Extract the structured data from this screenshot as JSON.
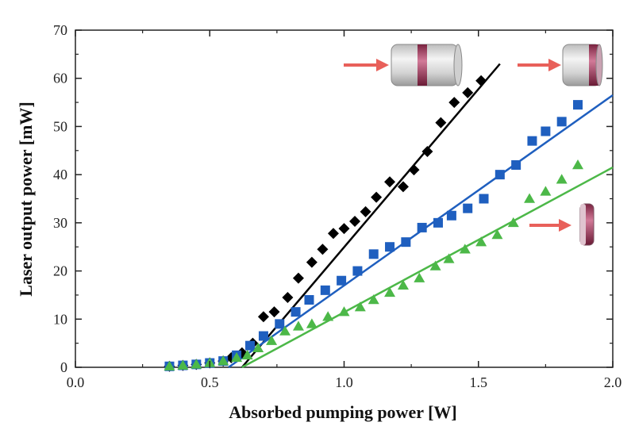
{
  "chart_data": {
    "type": "scatter",
    "title": "",
    "xlabel": "Absorbed pumping power [W]",
    "ylabel": "Laser output power [mW]",
    "xlim": [
      0.0,
      2.0
    ],
    "ylim": [
      0,
      70
    ],
    "xticks": [
      "0.0",
      "0.5",
      "1.0",
      "1.5",
      "2.0"
    ],
    "yticks": [
      "0",
      "10",
      "20",
      "30",
      "40",
      "50",
      "60",
      "70"
    ],
    "grid": false,
    "series": [
      {
        "marker": "diamond",
        "color": "#000000",
        "points": [
          [
            0.35,
            0.2
          ],
          [
            0.4,
            0.4
          ],
          [
            0.45,
            0.6
          ],
          [
            0.5,
            0.9
          ],
          [
            0.55,
            1.3
          ],
          [
            0.58,
            2.0
          ],
          [
            0.62,
            3.0
          ],
          [
            0.66,
            5.0
          ],
          [
            0.7,
            10.5
          ],
          [
            0.74,
            11.5
          ],
          [
            0.79,
            14.5
          ],
          [
            0.83,
            18.5
          ],
          [
            0.88,
            21.8
          ],
          [
            0.92,
            24.5
          ],
          [
            0.96,
            27.8
          ],
          [
            1.0,
            28.8
          ],
          [
            1.04,
            30.3
          ],
          [
            1.08,
            32.3
          ],
          [
            1.12,
            35.3
          ],
          [
            1.17,
            38.5
          ],
          [
            1.22,
            37.5
          ],
          [
            1.26,
            41.0
          ],
          [
            1.31,
            44.8
          ],
          [
            1.36,
            50.8
          ],
          [
            1.41,
            55.0
          ],
          [
            1.46,
            57.0
          ],
          [
            1.51,
            59.5
          ]
        ],
        "fit": [
          [
            0.62,
            0.0
          ],
          [
            1.58,
            63.0
          ]
        ]
      },
      {
        "marker": "square",
        "color": "#1f5fbf",
        "points": [
          [
            0.35,
            0.2
          ],
          [
            0.4,
            0.4
          ],
          [
            0.45,
            0.6
          ],
          [
            0.5,
            0.9
          ],
          [
            0.55,
            1.3
          ],
          [
            0.6,
            2.5
          ],
          [
            0.65,
            4.5
          ],
          [
            0.7,
            6.5
          ],
          [
            0.76,
            9.0
          ],
          [
            0.82,
            11.5
          ],
          [
            0.87,
            14.0
          ],
          [
            0.93,
            16.0
          ],
          [
            0.99,
            18.0
          ],
          [
            1.05,
            20.0
          ],
          [
            1.11,
            23.5
          ],
          [
            1.17,
            25.0
          ],
          [
            1.23,
            26.0
          ],
          [
            1.29,
            29.0
          ],
          [
            1.35,
            30.0
          ],
          [
            1.4,
            31.5
          ],
          [
            1.46,
            33.0
          ],
          [
            1.52,
            35.0
          ],
          [
            1.58,
            40.0
          ],
          [
            1.64,
            42.0
          ],
          [
            1.7,
            47.0
          ],
          [
            1.75,
            49.0
          ],
          [
            1.81,
            51.0
          ],
          [
            1.87,
            54.5
          ]
        ],
        "fit": [
          [
            0.57,
            0.0
          ],
          [
            2.0,
            56.5
          ]
        ]
      },
      {
        "marker": "triangle",
        "color": "#4cb848",
        "points": [
          [
            0.35,
            0.2
          ],
          [
            0.4,
            0.4
          ],
          [
            0.45,
            0.6
          ],
          [
            0.5,
            0.9
          ],
          [
            0.55,
            1.3
          ],
          [
            0.6,
            2.0
          ],
          [
            0.64,
            2.5
          ],
          [
            0.68,
            4.0
          ],
          [
            0.73,
            5.5
          ],
          [
            0.78,
            7.5
          ],
          [
            0.83,
            8.5
          ],
          [
            0.88,
            9.0
          ],
          [
            0.94,
            10.5
          ],
          [
            1.0,
            11.5
          ],
          [
            1.06,
            12.5
          ],
          [
            1.11,
            14.0
          ],
          [
            1.17,
            15.5
          ],
          [
            1.22,
            17.0
          ],
          [
            1.28,
            18.5
          ],
          [
            1.34,
            21.0
          ],
          [
            1.39,
            22.5
          ],
          [
            1.45,
            24.5
          ],
          [
            1.51,
            26.0
          ],
          [
            1.57,
            27.5
          ],
          [
            1.63,
            30.0
          ],
          [
            1.69,
            35.0
          ],
          [
            1.75,
            36.5
          ],
          [
            1.81,
            39.0
          ],
          [
            1.87,
            42.0
          ]
        ],
        "fit": [
          [
            0.62,
            0.0
          ],
          [
            2.0,
            41.5
          ]
        ]
      }
    ],
    "annotations": [
      {
        "icon": "long-crystal-icon",
        "arrow_color": "#e8605a"
      },
      {
        "icon": "medium-crystal-icon",
        "arrow_color": "#e8605a"
      },
      {
        "icon": "thin-disk-crystal-icon",
        "arrow_color": "#e8605a"
      }
    ]
  }
}
